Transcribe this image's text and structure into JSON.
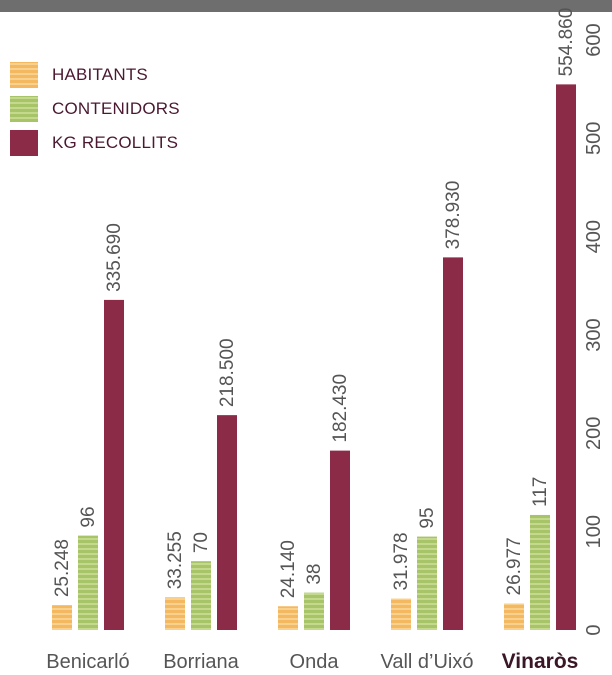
{
  "chart_data": {
    "type": "bar",
    "categories": [
      "Benicarló",
      "Borriana",
      "Onda",
      "Vall d’Uixó",
      "Vinaròs"
    ],
    "highlight_category": "Vinaròs",
    "series": [
      {
        "name": "HABITANTS",
        "values": [
          25248,
          33255,
          24140,
          31978,
          26977
        ],
        "labels": [
          "25.248",
          "33.255",
          "24.140",
          "31.978",
          "26.977"
        ],
        "color": "#f4b860"
      },
      {
        "name": "CONTENIDORS",
        "values": [
          96,
          70,
          38,
          95,
          117
        ],
        "labels": [
          "96",
          "70",
          "38",
          "95",
          "117"
        ],
        "color": "#a8c468"
      },
      {
        "name": "KG RECOLLITS",
        "values": [
          335690,
          218500,
          182430,
          378930,
          554860
        ],
        "labels": [
          "335.690",
          "218.500",
          "182.430",
          "378.930",
          "554.860"
        ],
        "color": "#8b2b47"
      }
    ],
    "yaxis": {
      "ticks": [
        0,
        100,
        200,
        300,
        400,
        500,
        600
      ],
      "tick_labels": [
        "0",
        "100",
        "200",
        "300",
        "400",
        "500",
        "600"
      ],
      "range": [
        0,
        600
      ],
      "position": "right"
    },
    "legend_position": "top-left",
    "grid": false
  }
}
